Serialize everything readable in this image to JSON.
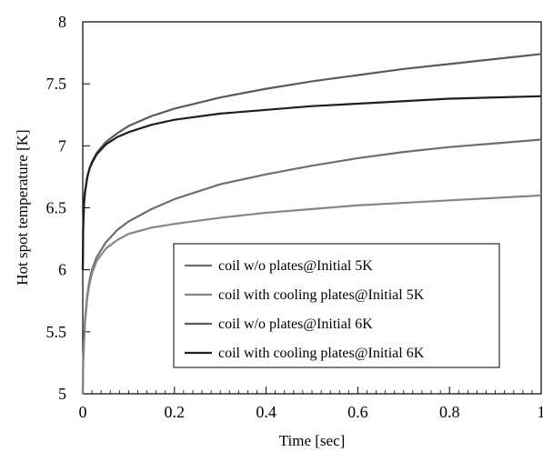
{
  "chart_data": {
    "type": "line",
    "title": "",
    "xlabel": "Time [sec]",
    "ylabel": "Hot spot temperature [K]",
    "xlim": [
      0,
      1
    ],
    "ylim": [
      5,
      8
    ],
    "x_ticks": [
      "0",
      "0.2",
      "0.4",
      "0.6",
      "0.8",
      "1"
    ],
    "y_ticks": [
      "5",
      "5.5",
      "6",
      "6.5",
      "7",
      "7.5",
      "8"
    ],
    "grid": false,
    "legend_position": "bottom-center",
    "x": [
      0,
      0.001,
      0.003,
      0.005,
      0.01,
      0.015,
      0.02,
      0.03,
      0.05,
      0.075,
      0.1,
      0.15,
      0.2,
      0.3,
      0.4,
      0.5,
      0.6,
      0.7,
      0.8,
      0.9,
      1.0
    ],
    "series": [
      {
        "name": "coil w/o plates@Initial 5K",
        "color": "#6e6e6e",
        "values": [
          5.0,
          5.25,
          5.45,
          5.6,
          5.8,
          5.92,
          6.0,
          6.1,
          6.22,
          6.32,
          6.39,
          6.49,
          6.57,
          6.69,
          6.77,
          6.84,
          6.9,
          6.95,
          6.99,
          7.02,
          7.05
        ]
      },
      {
        "name": "coil with cooling plates@Initial 5K",
        "color": "#858585",
        "values": [
          5.0,
          5.25,
          5.45,
          5.58,
          5.78,
          5.89,
          5.97,
          6.07,
          6.17,
          6.24,
          6.29,
          6.34,
          6.37,
          6.42,
          6.46,
          6.49,
          6.52,
          6.54,
          6.56,
          6.58,
          6.6
        ]
      },
      {
        "name": "coil w/o plates@Initial 6K",
        "color": "#5a5a5a",
        "values": [
          6.0,
          6.35,
          6.55,
          6.63,
          6.75,
          6.82,
          6.87,
          6.94,
          7.03,
          7.1,
          7.16,
          7.24,
          7.3,
          7.39,
          7.46,
          7.52,
          7.57,
          7.62,
          7.66,
          7.7,
          7.74
        ]
      },
      {
        "name": "coil with cooling plates@Initial 6K",
        "color": "#1e1e1e",
        "values": [
          6.0,
          6.35,
          6.55,
          6.63,
          6.75,
          6.82,
          6.86,
          6.93,
          7.01,
          7.07,
          7.11,
          7.17,
          7.21,
          7.26,
          7.29,
          7.32,
          7.34,
          7.36,
          7.38,
          7.39,
          7.4
        ]
      }
    ]
  }
}
